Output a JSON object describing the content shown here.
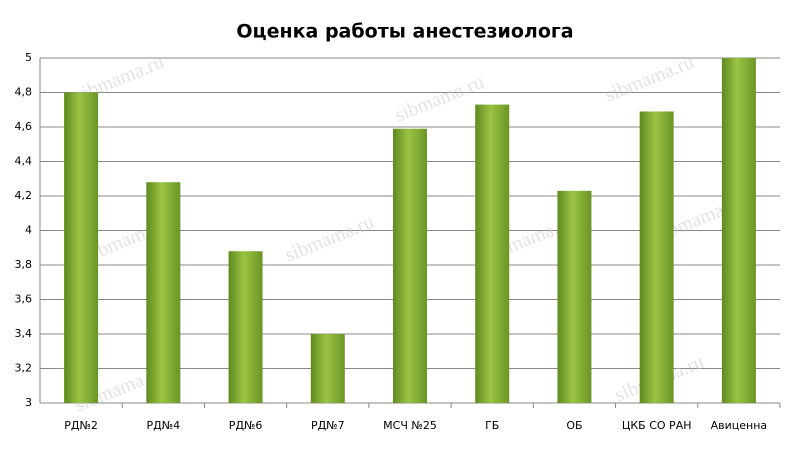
{
  "chart_data": {
    "type": "bar",
    "title": "Оценка работы анестезиолога",
    "categories": [
      "РД№2",
      "РД№4",
      "РД№6",
      "РД№7",
      "МСЧ №25",
      "ГБ",
      "ОБ",
      "ЦКБ СО РАН",
      "Авиценна"
    ],
    "values": [
      4.8,
      4.28,
      3.88,
      3.4,
      4.59,
      4.73,
      4.23,
      4.69,
      5.0
    ],
    "color": "#9bc444",
    "ylim": [
      3,
      5
    ],
    "yticks": [
      3,
      {
        "value": 3.2,
        "label": "3,2"
      },
      {
        "value": 3.4,
        "label": "3,4"
      },
      {
        "value": 3.6,
        "label": "3,6"
      },
      {
        "value": 3.8,
        "label": "3,8"
      },
      4,
      {
        "value": 4.2,
        "label": "4,2"
      },
      {
        "value": 4.4,
        "label": "4,4"
      },
      {
        "value": 4.6,
        "label": "4,6"
      },
      {
        "value": 4.8,
        "label": "4,8"
      },
      5
    ],
    "grid": true,
    "watermark": "sibmama.ru"
  }
}
